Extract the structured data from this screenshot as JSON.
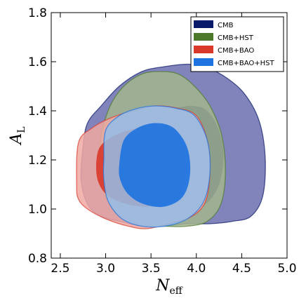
{
  "chart_data": {
    "type": "contour",
    "xlabel": {
      "main": "N",
      "sub": "eff"
    },
    "ylabel": {
      "main": "A",
      "sub": "L"
    },
    "xlim": [
      2.4,
      5.0
    ],
    "ylim": [
      0.8,
      1.8
    ],
    "xticks": [
      2.5,
      3.0,
      3.5,
      4.0,
      4.5,
      5.0
    ],
    "yticks": [
      0.8,
      1.0,
      1.2,
      1.4,
      1.6,
      1.8
    ],
    "xtick_labels": [
      "2.5",
      "3.0",
      "3.5",
      "4.0",
      "4.5",
      "5.0"
    ],
    "ytick_labels": [
      "0.8",
      "1.0",
      "1.2",
      "1.4",
      "1.6",
      "1.8"
    ],
    "grid": false,
    "legend_position": "top-right",
    "series": [
      {
        "name": "CMB",
        "color": "#0a1a6a",
        "outer_color": "#6b6fae",
        "contour_95": [
          [
            2.75,
            1.25
          ],
          [
            2.8,
            1.35
          ],
          [
            2.95,
            1.42
          ],
          [
            3.15,
            1.5
          ],
          [
            3.4,
            1.56
          ],
          [
            3.65,
            1.58
          ],
          [
            3.9,
            1.59
          ],
          [
            4.1,
            1.58
          ],
          [
            4.35,
            1.53
          ],
          [
            4.55,
            1.46
          ],
          [
            4.7,
            1.35
          ],
          [
            4.76,
            1.2
          ],
          [
            4.73,
            1.05
          ],
          [
            4.6,
            0.97
          ],
          [
            4.4,
            0.95
          ],
          [
            4.15,
            0.94
          ],
          [
            3.9,
            0.94
          ],
          [
            3.65,
            0.93
          ],
          [
            3.4,
            0.93
          ],
          [
            3.15,
            0.95
          ],
          [
            2.95,
            0.97
          ],
          [
            2.8,
            1.02
          ],
          [
            2.73,
            1.12
          ]
        ],
        "contour_68": [
          [
            3.2,
            1.25
          ],
          [
            3.3,
            1.33
          ],
          [
            3.5,
            1.39
          ],
          [
            3.75,
            1.41
          ],
          [
            3.95,
            1.42
          ],
          [
            4.12,
            1.4
          ],
          [
            4.25,
            1.32
          ],
          [
            4.3,
            1.22
          ],
          [
            4.25,
            1.1
          ],
          [
            4.1,
            1.02
          ],
          [
            3.85,
            1.0
          ],
          [
            3.6,
            1.01
          ],
          [
            3.35,
            1.05
          ],
          [
            3.22,
            1.13
          ]
        ]
      },
      {
        "name": "CMB+HST",
        "color": "#4d7a2a",
        "outer_color": "#a3b58e",
        "contour_95": [
          [
            2.95,
            1.3
          ],
          [
            3.05,
            1.42
          ],
          [
            3.2,
            1.5
          ],
          [
            3.4,
            1.55
          ],
          [
            3.6,
            1.56
          ],
          [
            3.8,
            1.55
          ],
          [
            3.98,
            1.5
          ],
          [
            4.15,
            1.42
          ],
          [
            4.28,
            1.3
          ],
          [
            4.32,
            1.15
          ],
          [
            4.27,
            1.02
          ],
          [
            4.12,
            0.95
          ],
          [
            3.9,
            0.93
          ],
          [
            3.65,
            0.93
          ],
          [
            3.4,
            0.94
          ],
          [
            3.15,
            0.97
          ],
          [
            3.0,
            1.05
          ],
          [
            2.93,
            1.17
          ]
        ]
      },
      {
        "name": "CMB+BAO",
        "color": "#d9392b",
        "outer_color": "#f0a8a2",
        "contour_95": [
          [
            2.68,
            1.1
          ],
          [
            2.7,
            1.27
          ],
          [
            2.85,
            1.33
          ],
          [
            3.05,
            1.37
          ],
          [
            3.3,
            1.4
          ],
          [
            3.55,
            1.42
          ],
          [
            3.8,
            1.41
          ],
          [
            4.0,
            1.38
          ],
          [
            4.12,
            1.28
          ],
          [
            4.15,
            1.15
          ],
          [
            4.1,
            1.03
          ],
          [
            3.95,
            0.97
          ],
          [
            3.7,
            0.94
          ],
          [
            3.45,
            0.92
          ],
          [
            3.25,
            0.93
          ],
          [
            3.0,
            0.96
          ],
          [
            2.8,
            1.0
          ],
          [
            2.7,
            1.04
          ]
        ],
        "contour_68": [
          [
            2.9,
            1.14
          ],
          [
            2.92,
            1.24
          ],
          [
            3.05,
            1.29
          ],
          [
            3.25,
            1.32
          ],
          [
            3.5,
            1.34
          ],
          [
            3.72,
            1.33
          ],
          [
            3.85,
            1.26
          ],
          [
            3.88,
            1.15
          ],
          [
            3.82,
            1.06
          ],
          [
            3.65,
            1.02
          ],
          [
            3.4,
            1.01
          ],
          [
            3.15,
            1.03
          ],
          [
            2.98,
            1.07
          ]
        ]
      },
      {
        "name": "CMB+BAO+HST",
        "color": "#1e73e0",
        "outer_color": "#93bde8",
        "contour_95": [
          [
            2.98,
            1.2
          ],
          [
            3.0,
            1.32
          ],
          [
            3.15,
            1.38
          ],
          [
            3.35,
            1.41
          ],
          [
            3.55,
            1.42
          ],
          [
            3.78,
            1.41
          ],
          [
            3.98,
            1.38
          ],
          [
            4.12,
            1.28
          ],
          [
            4.15,
            1.15
          ],
          [
            4.08,
            1.03
          ],
          [
            3.9,
            0.96
          ],
          [
            3.65,
            0.93
          ],
          [
            3.4,
            0.93
          ],
          [
            3.18,
            0.96
          ],
          [
            3.03,
            1.03
          ],
          [
            2.98,
            1.12
          ]
        ],
        "contour_68": [
          [
            3.15,
            1.18
          ],
          [
            3.2,
            1.28
          ],
          [
            3.35,
            1.33
          ],
          [
            3.55,
            1.35
          ],
          [
            3.75,
            1.33
          ],
          [
            3.9,
            1.25
          ],
          [
            3.93,
            1.14
          ],
          [
            3.85,
            1.05
          ],
          [
            3.65,
            1.01
          ],
          [
            3.42,
            1.02
          ],
          [
            3.25,
            1.06
          ],
          [
            3.16,
            1.12
          ]
        ]
      }
    ]
  }
}
